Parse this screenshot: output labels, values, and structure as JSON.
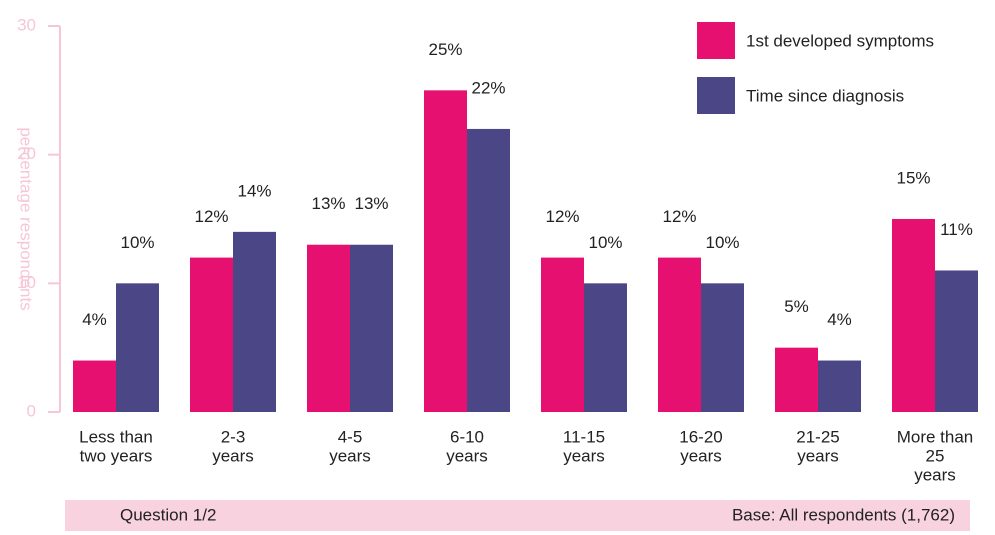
{
  "chart_data": {
    "type": "bar",
    "y_label": "percentage respondents",
    "categories": [
      [
        "Less than",
        "two years"
      ],
      [
        "2-3",
        "years"
      ],
      [
        "4-5",
        "years"
      ],
      [
        "6-10",
        "years"
      ],
      [
        "11-15",
        "years"
      ],
      [
        "16-20",
        "years"
      ],
      [
        "21-25",
        "years"
      ],
      [
        "More than",
        "25",
        "years"
      ]
    ],
    "series": [
      {
        "name": "1st developed symptoms",
        "color": "#e5106f",
        "values": [
          4,
          12,
          13,
          25,
          12,
          12,
          5,
          15
        ],
        "value_labels": [
          "4%",
          "12%",
          "13%",
          "25%",
          "12%",
          "12%",
          "5%",
          "15%"
        ]
      },
      {
        "name": "Time since diagnosis",
        "color": "#4b4787",
        "values": [
          10,
          14,
          13,
          22,
          10,
          10,
          4,
          11
        ],
        "value_labels": [
          "10%",
          "14%",
          "13%",
          "22%",
          "10%",
          "10%",
          "4%",
          "11%"
        ]
      }
    ],
    "ylim": [
      0,
      30
    ],
    "yticks": [
      0,
      10,
      20,
      30
    ],
    "legend": "top-right"
  },
  "footer": {
    "left": "Question 1/2",
    "right": "Base: All respondents (1,762)"
  }
}
